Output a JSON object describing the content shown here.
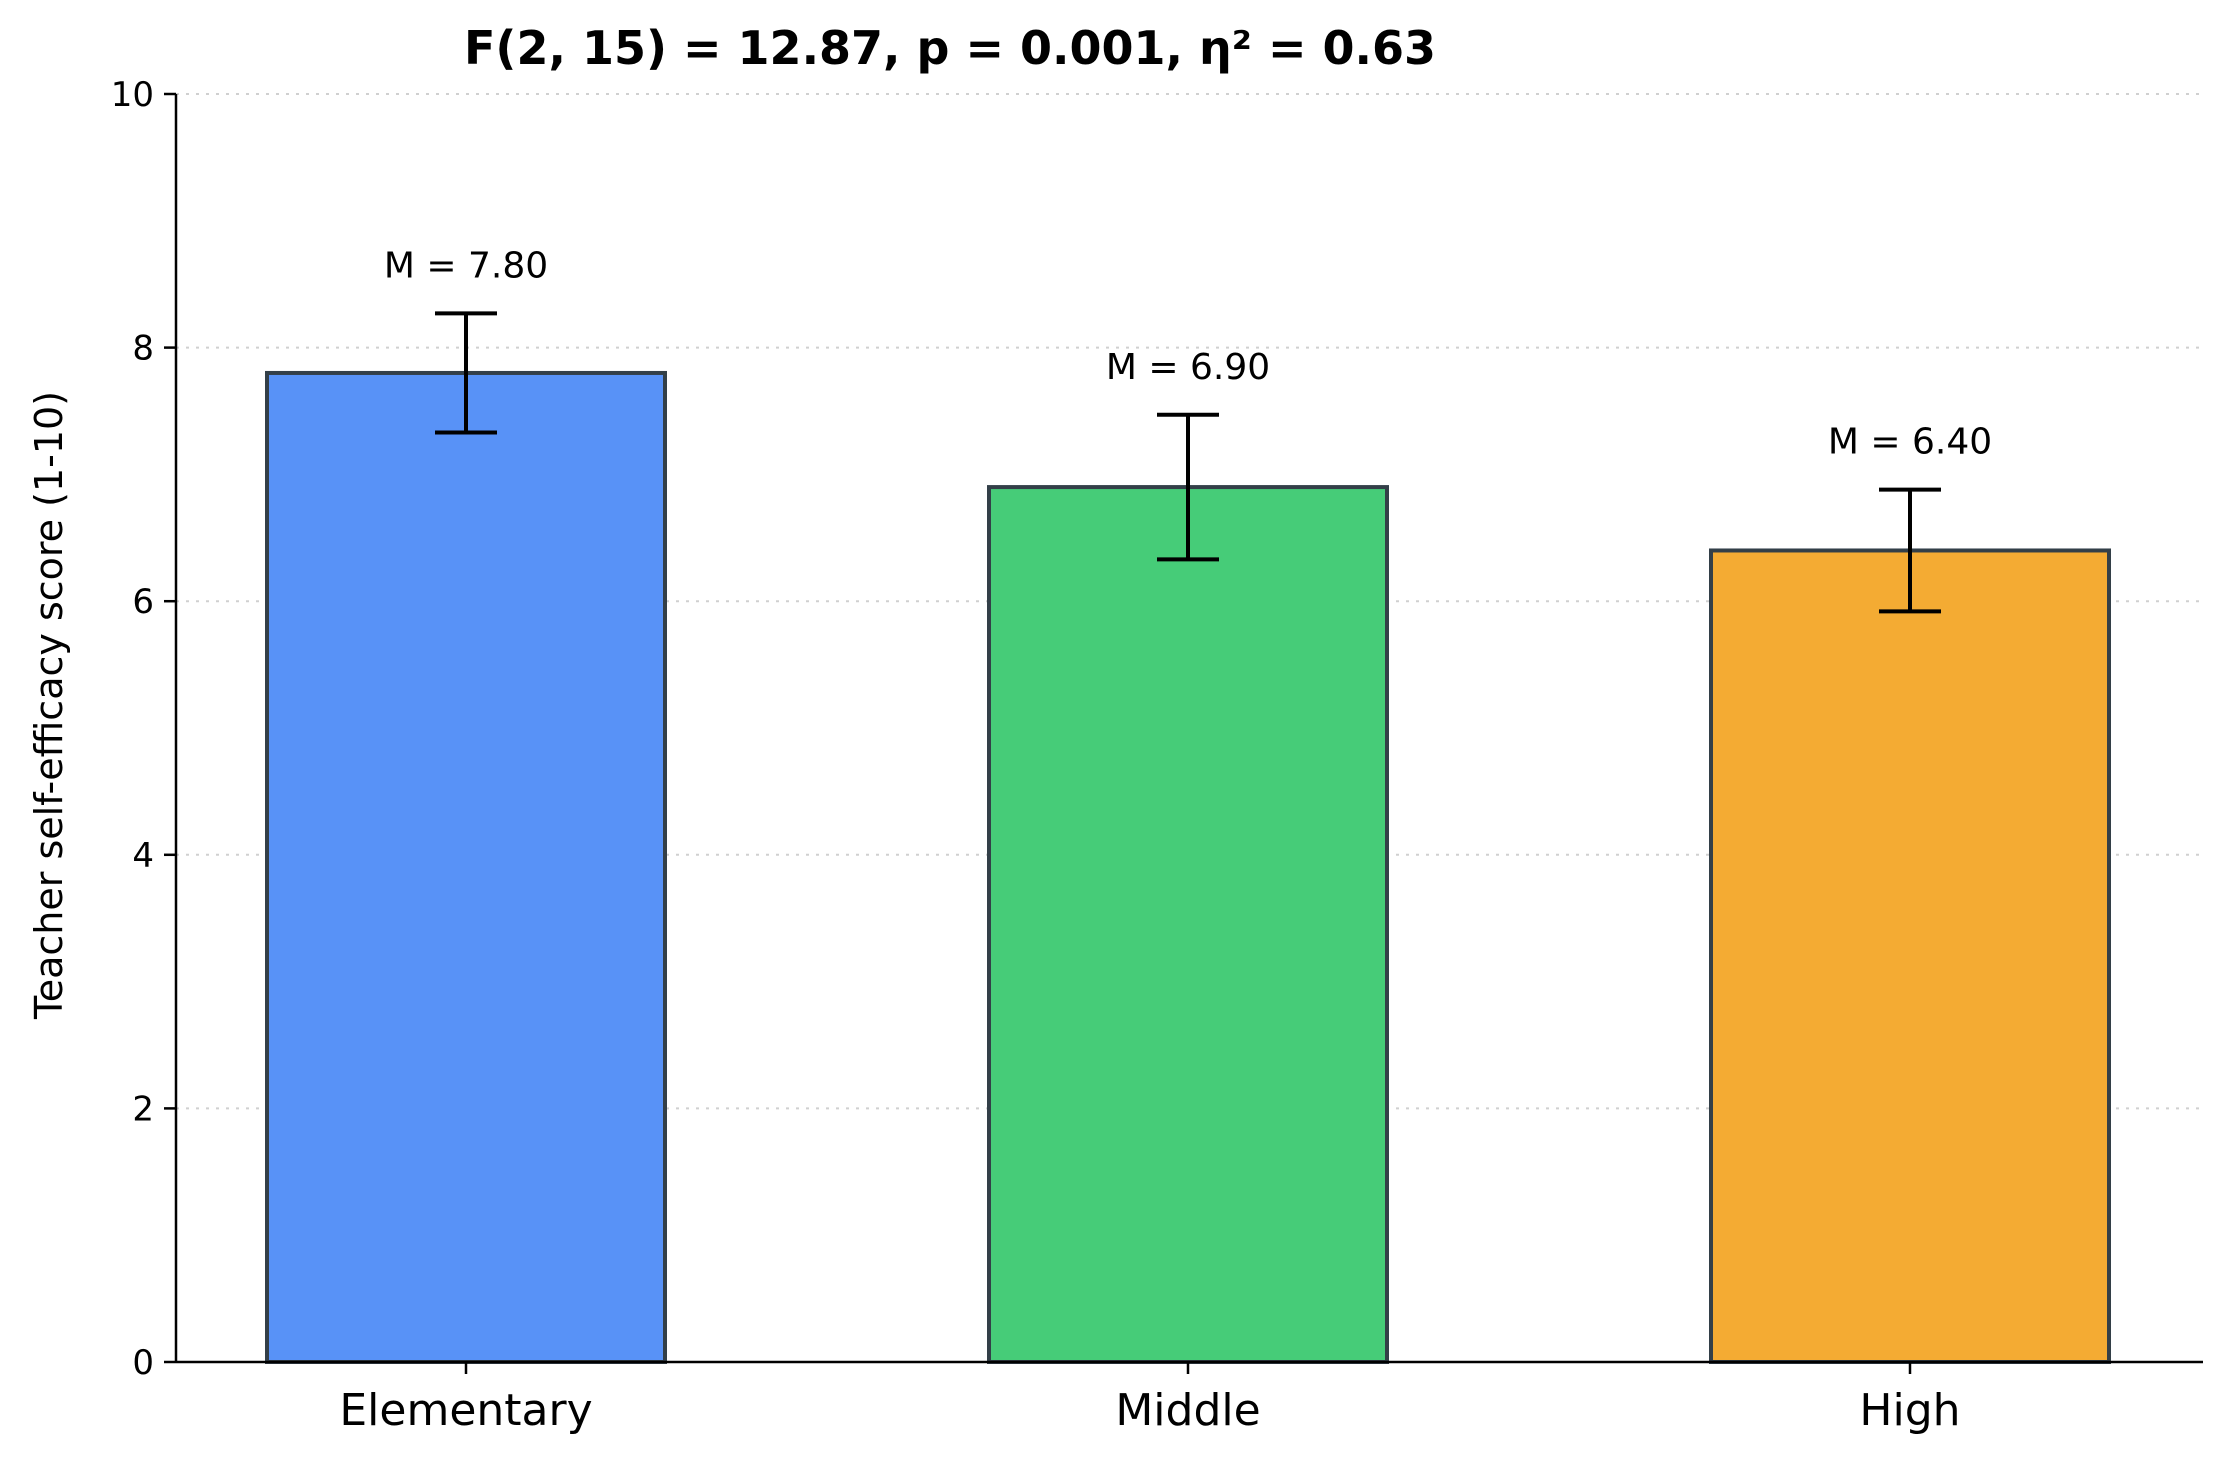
{
  "chart_data": {
    "type": "bar",
    "title": "F(2, 15) = 12.87, p = 0.001, η² = 0.63",
    "xlabel": "",
    "ylabel": "Teacher self-efficacy score (1-10)",
    "ylim": [
      0,
      10
    ],
    "yticks": [
      0,
      2,
      4,
      6,
      8,
      10
    ],
    "grid": "y-dotted",
    "categories": [
      "Elementary",
      "Middle",
      "High"
    ],
    "values": [
      7.8,
      6.9,
      6.4
    ],
    "errors": [
      0.47,
      0.57,
      0.48
    ],
    "labels": [
      "M = 7.80",
      "M = 6.90",
      "M = 6.40"
    ],
    "colors": [
      "#5892f7",
      "#46cc78",
      "#f4ab33"
    ],
    "edge_color": "#333f48"
  }
}
